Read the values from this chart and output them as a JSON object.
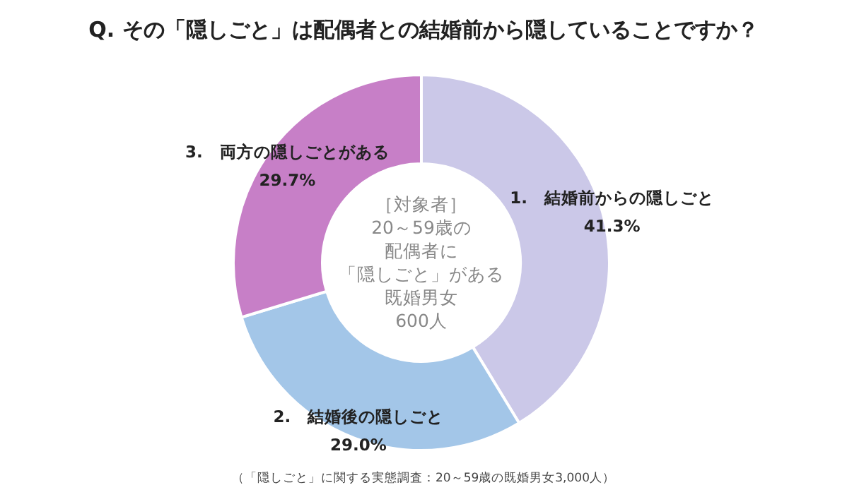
{
  "chart_data": {
    "type": "donut",
    "title": "Q. その「隠しごと」は配偶者との結婚前から隠していることですか？",
    "categories": [
      "1.　結婚前からの隠しごと",
      "2.　結婚後の隠しごと",
      "3.　両方の隠しごとがある"
    ],
    "values": [
      41.3,
      29.0,
      29.7
    ],
    "value_labels": [
      "41.3%",
      "29.0%",
      "29.7%"
    ],
    "colors": [
      "#cbc8e8",
      "#a3c6e8",
      "#c77fc7"
    ],
    "annotations": [
      "［対象者］",
      "20～59歳の",
      "配偶者に",
      "「隠しごと」がある",
      "既婚男女",
      "600人",
      "（「隠しごと」に関する実態調査：20～59歳の既婚男女3,000人）"
    ]
  }
}
